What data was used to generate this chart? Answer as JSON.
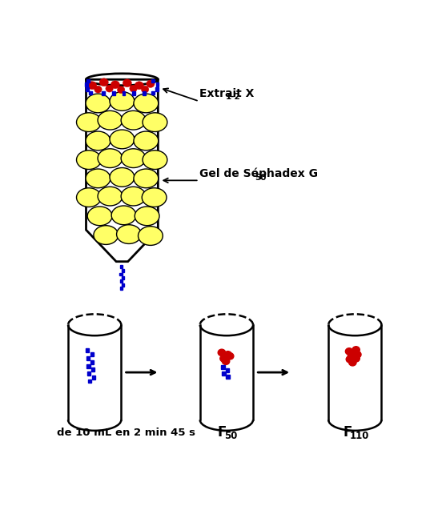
{
  "bg_color": "#ffffff",
  "red_color": "#cc0000",
  "blue_color": "#0000cc",
  "yellow_color": "#ffff66",
  "black_color": "#000000",
  "extrait_text": "Extrait X",
  "extrait_sub": "1-2",
  "gel_text": "Gel de Séphadex G",
  "gel_sub": "50",
  "label1": "de 10 mL en 2 min 45 s",
  "label2_main": "F",
  "label2_sub": "50",
  "label3_main": "F",
  "label3_sub": "110"
}
